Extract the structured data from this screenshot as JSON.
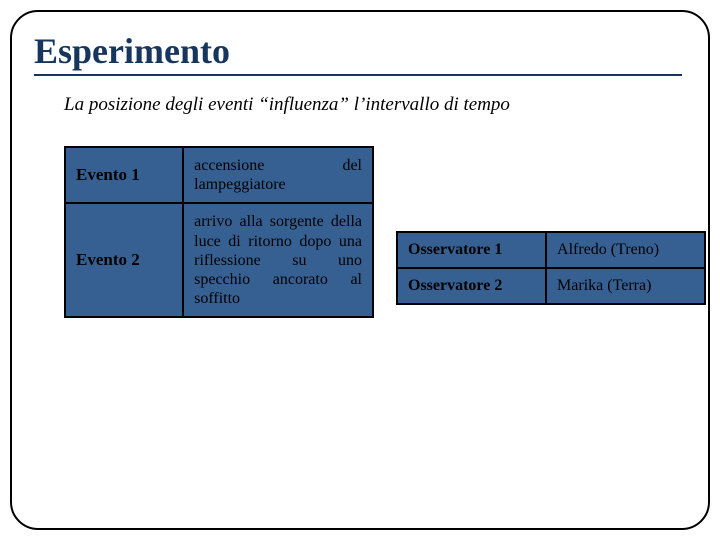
{
  "title": "Esperimento",
  "subtitle": "La posizione degli eventi “influenza” l’intervallo di tempo",
  "colors": {
    "title_color": "#17365d",
    "cell_bg": "#376092",
    "border": "#000000",
    "text": "#000000",
    "background": "#ffffff"
  },
  "typography": {
    "title_fontsize": 36,
    "subtitle_fontsize": 19,
    "cell_header_fontsize": 17,
    "cell_body_fontsize": 16,
    "font_family": "Georgia, Times New Roman, serif"
  },
  "layout": {
    "slide_width": 720,
    "slide_height": 540,
    "border_radius": 28
  },
  "events_table": {
    "type": "table",
    "columns": [
      "label",
      "desc"
    ],
    "cell_bg": "#376092",
    "border_color": "#000000",
    "rows": [
      {
        "label": "Evento 1",
        "desc": "accensione del lampeggiatore"
      },
      {
        "label": "Evento 2",
        "desc": "arrivo alla sorgente della luce di ritorno dopo una riflessione su uno specchio ancorato al soffitto"
      }
    ]
  },
  "observers_table": {
    "type": "table",
    "columns": [
      "label",
      "value"
    ],
    "cell_bg": "#376092",
    "border_color": "#000000",
    "rows": [
      {
        "label": "Osservatore 1",
        "value": "Alfredo (Treno)"
      },
      {
        "label": "Osservatore 2",
        "value": "Marika (Terra)"
      }
    ]
  }
}
